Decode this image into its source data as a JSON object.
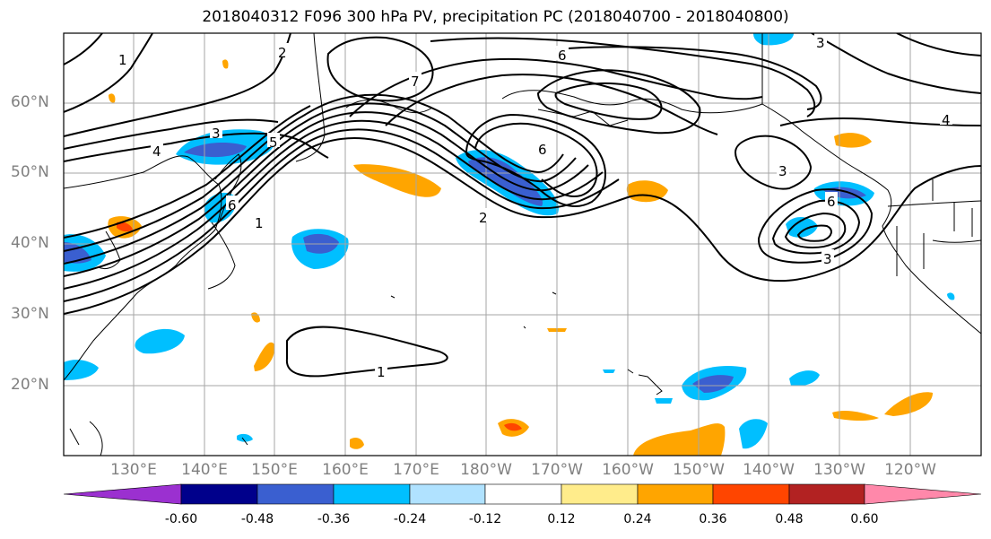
{
  "title": "2018040312 F096 300 hPa PV, precipitation PC (2018040700 - 2018040800)",
  "lat_labels": [
    "60°N",
    "50°N",
    "40°N",
    "30°N",
    "20°N"
  ],
  "lon_labels": [
    "130°E",
    "140°E",
    "150°E",
    "160°E",
    "170°E",
    "180°W",
    "170°W",
    "160°W",
    "150°W",
    "140°W",
    "130°W",
    "120°W"
  ],
  "contour_labels": [
    "1",
    "2",
    "3",
    "4",
    "5",
    "6",
    "7"
  ],
  "colorbar": {
    "colors": [
      "#9b30d0",
      "#00008b",
      "#3a5fd0",
      "#00bfff",
      "#b0e2ff",
      "#ffffff",
      "#ffec8b",
      "#ffa500",
      "#ff4500",
      "#b22222",
      "#ff88aa"
    ],
    "tick_labels": [
      "-0.60",
      "-0.48",
      "-0.36",
      "-0.24",
      "-0.12",
      "0.12",
      "0.24",
      "0.36",
      "0.48",
      "0.60"
    ]
  }
}
